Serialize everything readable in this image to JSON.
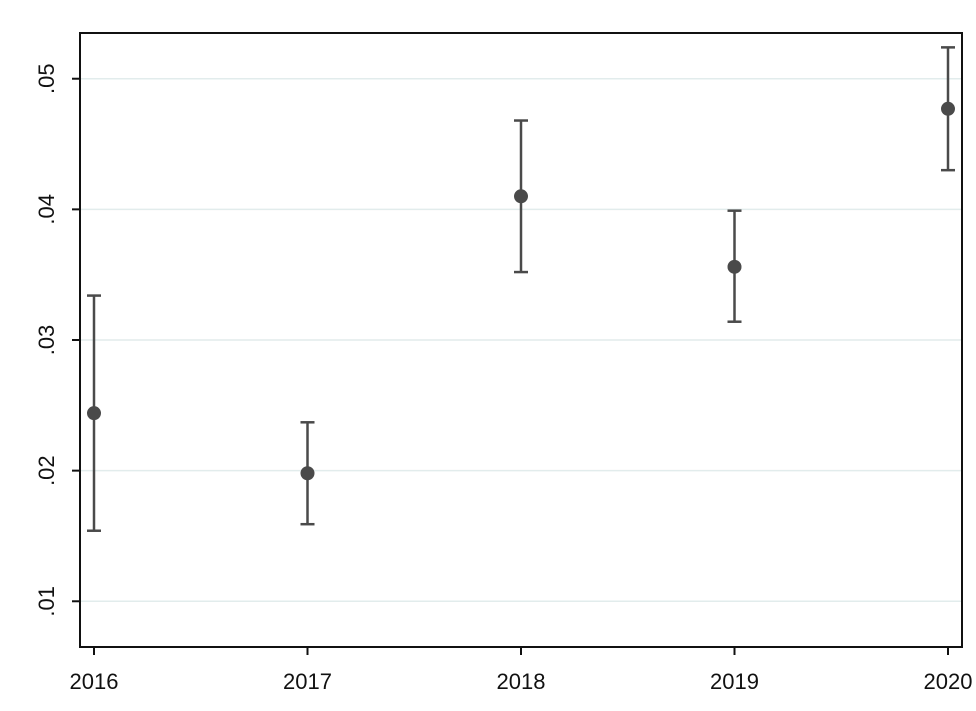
{
  "chart_data": {
    "type": "scatter",
    "title": "",
    "xlabel": "",
    "ylabel": "",
    "x_ticks": [
      "2016",
      "2017",
      "2018",
      "2019",
      "2020"
    ],
    "y_ticks": [
      ".01",
      ".02",
      ".03",
      ".04",
      ".05"
    ],
    "y_tick_values": [
      0.01,
      0.02,
      0.03,
      0.04,
      0.05
    ],
    "xlim": [
      2016,
      2020
    ],
    "ylim": [
      0.0065,
      0.0535
    ],
    "grid": "horizontal",
    "legend": "none",
    "series": [
      {
        "x": [
          2016,
          2017,
          2018,
          2019,
          2020
        ],
        "y": [
          0.0244,
          0.0198,
          0.041,
          0.0356,
          0.0477
        ],
        "ci_low": [
          0.0154,
          0.0159,
          0.0352,
          0.0314,
          0.043
        ],
        "ci_high": [
          0.0334,
          0.0237,
          0.0468,
          0.0399,
          0.0524
        ],
        "color": "#4a4a4a"
      }
    ],
    "colors": {
      "marker": "#4a4a4a",
      "grid": "#e2ecec",
      "axis": "#111111"
    }
  }
}
